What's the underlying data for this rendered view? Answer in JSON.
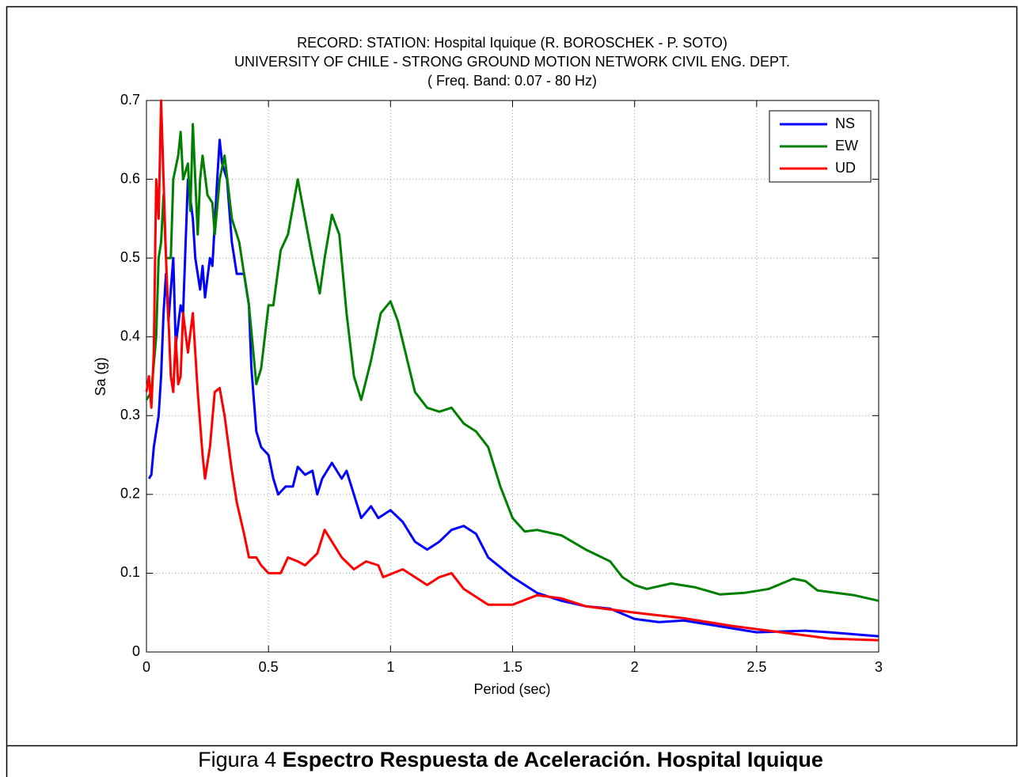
{
  "chart_data": {
    "type": "line",
    "title": [
      "RECORD: STATION: Hospital Iquique (R. BOROSCHEK - P. SOTO)",
      "UNIVERSITY OF CHILE - STRONG GROUND MOTION NETWORK CIVIL ENG. DEPT.",
      "( Freq. Band: 0.07 - 80 Hz)"
    ],
    "xlabel": "Period (sec)",
    "ylabel": "Sa (g)",
    "xlim": [
      0,
      3
    ],
    "ylim": [
      0,
      0.7
    ],
    "xticks": [
      0,
      0.5,
      1,
      1.5,
      2,
      2.5,
      3
    ],
    "yticks": [
      0,
      0.1,
      0.2,
      0.3,
      0.4,
      0.5,
      0.6,
      0.7
    ],
    "grid": true,
    "legend": "northeast",
    "series": [
      {
        "name": "NS",
        "color": "#0000ff",
        "x": [
          0.01,
          0.02,
          0.03,
          0.05,
          0.06,
          0.07,
          0.08,
          0.09,
          0.1,
          0.11,
          0.12,
          0.14,
          0.15,
          0.17,
          0.19,
          0.2,
          0.22,
          0.23,
          0.24,
          0.26,
          0.27,
          0.29,
          0.3,
          0.31,
          0.33,
          0.35,
          0.37,
          0.4,
          0.42,
          0.43,
          0.45,
          0.47,
          0.5,
          0.52,
          0.54,
          0.57,
          0.6,
          0.62,
          0.65,
          0.68,
          0.7,
          0.72,
          0.76,
          0.78,
          0.8,
          0.82,
          0.85,
          0.88,
          0.92,
          0.95,
          1.0,
          1.05,
          1.1,
          1.15,
          1.2,
          1.25,
          1.3,
          1.35,
          1.4,
          1.5,
          1.6,
          1.7,
          1.8,
          1.9,
          2.0,
          2.1,
          2.2,
          2.3,
          2.5,
          2.7,
          2.8,
          3.0
        ],
        "values": [
          0.22,
          0.225,
          0.26,
          0.3,
          0.35,
          0.43,
          0.48,
          0.42,
          0.46,
          0.5,
          0.39,
          0.44,
          0.43,
          0.6,
          0.55,
          0.5,
          0.46,
          0.49,
          0.45,
          0.5,
          0.49,
          0.6,
          0.65,
          0.62,
          0.6,
          0.52,
          0.48,
          0.48,
          0.44,
          0.36,
          0.28,
          0.26,
          0.25,
          0.22,
          0.2,
          0.21,
          0.21,
          0.235,
          0.225,
          0.23,
          0.2,
          0.22,
          0.24,
          0.23,
          0.22,
          0.23,
          0.2,
          0.17,
          0.185,
          0.17,
          0.18,
          0.165,
          0.14,
          0.13,
          0.14,
          0.155,
          0.16,
          0.15,
          0.12,
          0.095,
          0.075,
          0.065,
          0.058,
          0.055,
          0.042,
          0.038,
          0.04,
          0.035,
          0.025,
          0.027,
          0.025,
          0.02
        ]
      },
      {
        "name": "EW",
        "color": "#008000",
        "x": [
          0.0,
          0.02,
          0.04,
          0.05,
          0.06,
          0.07,
          0.08,
          0.1,
          0.11,
          0.13,
          0.14,
          0.15,
          0.17,
          0.18,
          0.19,
          0.2,
          0.21,
          0.22,
          0.23,
          0.25,
          0.27,
          0.28,
          0.3,
          0.32,
          0.35,
          0.38,
          0.4,
          0.42,
          0.45,
          0.47,
          0.5,
          0.52,
          0.55,
          0.58,
          0.62,
          0.65,
          0.68,
          0.71,
          0.73,
          0.76,
          0.79,
          0.82,
          0.85,
          0.88,
          0.92,
          0.96,
          1.0,
          1.03,
          1.1,
          1.15,
          1.2,
          1.25,
          1.3,
          1.35,
          1.4,
          1.45,
          1.5,
          1.55,
          1.6,
          1.7,
          1.8,
          1.9,
          1.95,
          2.0,
          2.05,
          2.15,
          2.25,
          2.35,
          2.45,
          2.55,
          2.65,
          2.7,
          2.75,
          2.9,
          3.0
        ],
        "values": [
          0.32,
          0.33,
          0.4,
          0.5,
          0.52,
          0.58,
          0.5,
          0.5,
          0.6,
          0.63,
          0.66,
          0.6,
          0.62,
          0.56,
          0.67,
          0.6,
          0.53,
          0.6,
          0.63,
          0.58,
          0.57,
          0.53,
          0.6,
          0.63,
          0.55,
          0.52,
          0.48,
          0.44,
          0.34,
          0.36,
          0.44,
          0.44,
          0.51,
          0.53,
          0.6,
          0.55,
          0.5,
          0.455,
          0.5,
          0.555,
          0.53,
          0.43,
          0.35,
          0.32,
          0.37,
          0.43,
          0.445,
          0.42,
          0.33,
          0.31,
          0.305,
          0.31,
          0.29,
          0.28,
          0.26,
          0.21,
          0.17,
          0.153,
          0.155,
          0.148,
          0.13,
          0.115,
          0.095,
          0.085,
          0.08,
          0.087,
          0.082,
          0.073,
          0.075,
          0.08,
          0.093,
          0.09,
          0.078,
          0.072,
          0.065
        ]
      },
      {
        "name": "UD",
        "color": "#ff0000",
        "x": [
          0.0,
          0.01,
          0.02,
          0.03,
          0.04,
          0.05,
          0.06,
          0.07,
          0.08,
          0.1,
          0.11,
          0.12,
          0.13,
          0.14,
          0.15,
          0.17,
          0.19,
          0.21,
          0.23,
          0.24,
          0.26,
          0.28,
          0.3,
          0.32,
          0.35,
          0.37,
          0.4,
          0.42,
          0.45,
          0.47,
          0.5,
          0.55,
          0.58,
          0.62,
          0.65,
          0.7,
          0.73,
          0.76,
          0.8,
          0.85,
          0.9,
          0.95,
          0.97,
          1.05,
          1.1,
          1.15,
          1.2,
          1.25,
          1.3,
          1.4,
          1.5,
          1.6,
          1.7,
          1.8,
          2.0,
          2.2,
          2.4,
          2.6,
          2.8,
          3.0
        ],
        "values": [
          0.33,
          0.35,
          0.31,
          0.38,
          0.6,
          0.55,
          0.7,
          0.6,
          0.5,
          0.35,
          0.33,
          0.4,
          0.34,
          0.35,
          0.43,
          0.38,
          0.43,
          0.33,
          0.25,
          0.22,
          0.26,
          0.33,
          0.335,
          0.3,
          0.23,
          0.19,
          0.15,
          0.12,
          0.12,
          0.11,
          0.1,
          0.1,
          0.12,
          0.115,
          0.11,
          0.125,
          0.155,
          0.14,
          0.12,
          0.105,
          0.115,
          0.11,
          0.095,
          0.105,
          0.095,
          0.085,
          0.095,
          0.1,
          0.08,
          0.06,
          0.06,
          0.072,
          0.068,
          0.058,
          0.05,
          0.043,
          0.033,
          0.025,
          0.017,
          0.015
        ]
      }
    ]
  },
  "caption": {
    "label": "Figura 4",
    "title": "Espectro Respuesta de Aceleración. Hospital Iquique"
  }
}
